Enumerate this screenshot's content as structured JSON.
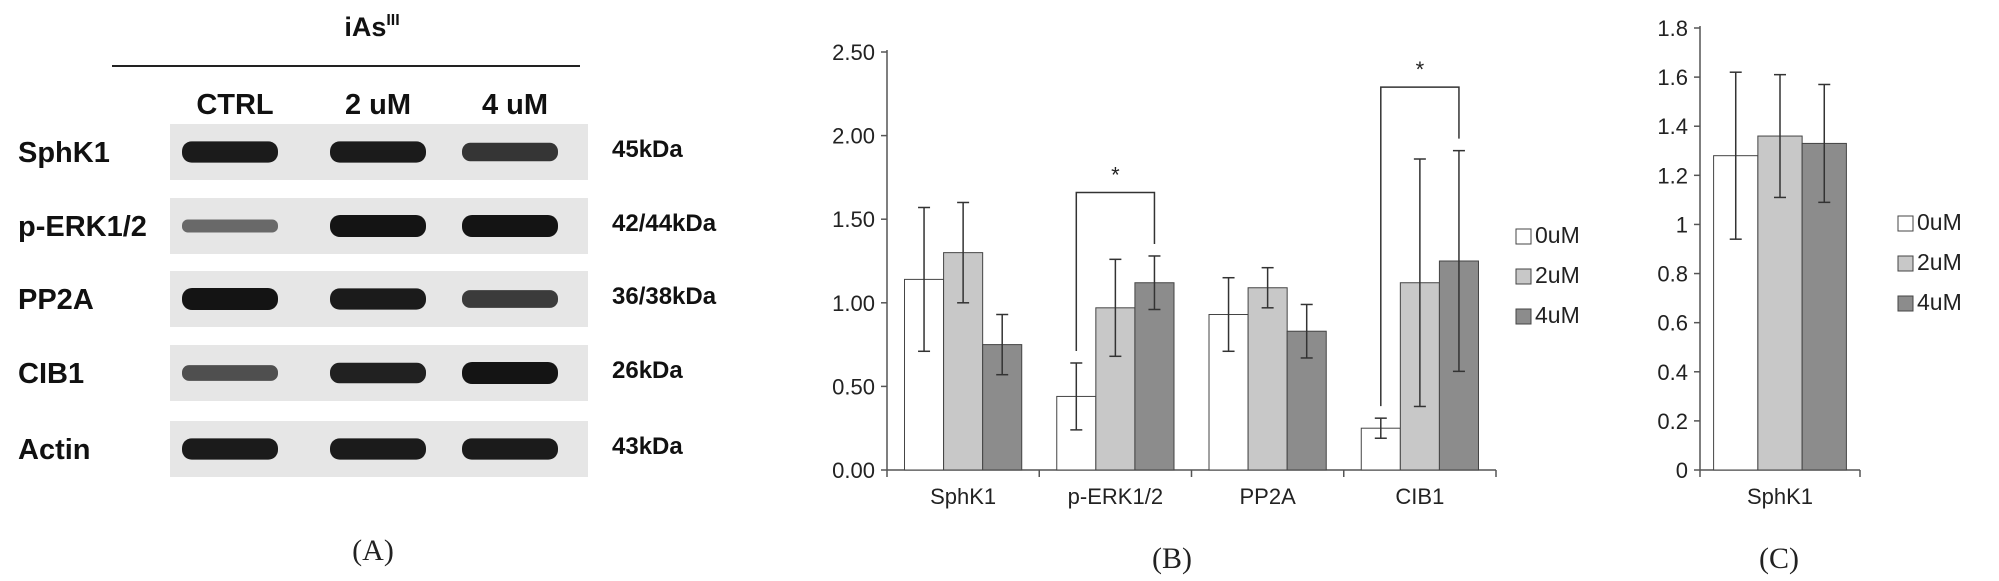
{
  "panel_a": {
    "treatment_label": "iAs",
    "treatment_superscript": "III",
    "lanes": [
      "CTRL",
      "2 uM",
      "4 uM"
    ],
    "proteins": [
      {
        "name": "SphK1",
        "size": "45kDa",
        "band_intensity": [
          0.95,
          0.95,
          0.75
        ]
      },
      {
        "name": "p-ERK1/2",
        "size": "42/44kDa",
        "band_intensity": [
          0.35,
          1.0,
          1.0
        ]
      },
      {
        "name": "PP2A",
        "size": "36/38kDa",
        "band_intensity": [
          1.0,
          0.95,
          0.7
        ]
      },
      {
        "name": "CIB1",
        "size": "26kDa",
        "band_intensity": [
          0.55,
          0.9,
          1.0
        ]
      },
      {
        "name": "Actin",
        "size": "43kDa",
        "band_intensity": [
          0.95,
          0.95,
          0.95
        ]
      }
    ],
    "caption": "(A)"
  },
  "chart_data": [
    {
      "type": "bar",
      "caption": "(B)",
      "categories": [
        "SphK1",
        "pERK1/2",
        "PP2A",
        "CIB1"
      ],
      "category_labels": [
        "SphK1",
        "p-ERK1/2",
        "PP2A",
        "CIB1"
      ],
      "series": [
        {
          "name": "0uM",
          "color": "#ffffff",
          "values": [
            1.14,
            0.44,
            0.93,
            0.25
          ],
          "errors": [
            0.43,
            0.2,
            0.22,
            0.06
          ]
        },
        {
          "name": "2uM",
          "color": "#c8c8c8",
          "values": [
            1.3,
            0.97,
            1.09,
            1.12
          ],
          "errors": [
            0.3,
            0.29,
            0.12,
            0.74
          ]
        },
        {
          "name": "4uM",
          "color": "#8c8c8c",
          "values": [
            0.75,
            1.12,
            0.83,
            1.25
          ],
          "errors": [
            0.18,
            0.16,
            0.16,
            0.66
          ]
        }
      ],
      "ylim": [
        0,
        2.5
      ],
      "yticks": [
        "0.00",
        "0.50",
        "1.00",
        "1.50",
        "2.00",
        "2.50"
      ],
      "significance": [
        {
          "category": "pERK1/2",
          "series": [
            "0uM",
            "4uM"
          ],
          "label": "*"
        },
        {
          "category": "CIB1",
          "series": [
            "0uM",
            "4uM"
          ],
          "label": "*"
        }
      ],
      "legend": "right"
    },
    {
      "type": "bar",
      "caption": "(C)",
      "categories": [
        "SphK1"
      ],
      "series": [
        {
          "name": "0uM",
          "color": "#ffffff",
          "values": [
            1.28
          ],
          "errors": [
            0.34
          ]
        },
        {
          "name": "2uM",
          "color": "#c8c8c8",
          "values": [
            1.36
          ],
          "errors": [
            0.25
          ]
        },
        {
          "name": "4uM",
          "color": "#8c8c8c",
          "values": [
            1.33
          ],
          "errors": [
            0.24
          ]
        }
      ],
      "ylim": [
        0,
        1.8
      ],
      "yticks": [
        "0",
        "0.2",
        "0.4",
        "0.6",
        "0.8",
        "1",
        "1.2",
        "1.4",
        "1.6",
        "1.8"
      ],
      "legend": "right"
    }
  ]
}
